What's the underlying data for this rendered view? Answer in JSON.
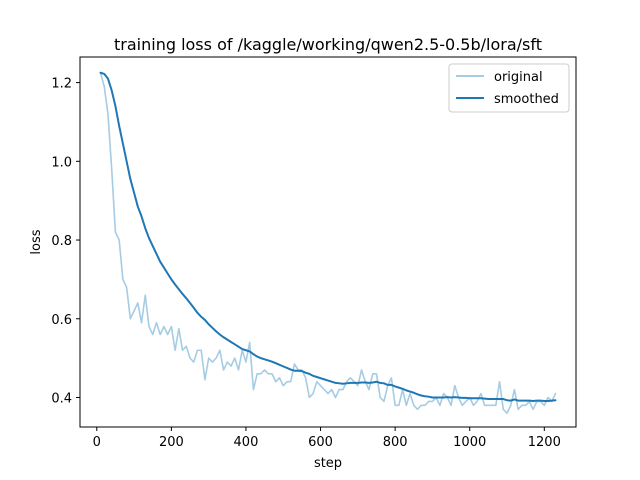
{
  "chart_data": {
    "type": "line",
    "title": "training loss of /kaggle/working/qwen2.5-0.5b/lora/sft",
    "xlabel": "step",
    "ylabel": "loss",
    "xlim": [
      -45,
      1285
    ],
    "ylim": [
      0.325,
      1.265
    ],
    "xticks": [
      0,
      200,
      400,
      600,
      800,
      1000,
      1200
    ],
    "yticks": [
      0.4,
      0.6,
      0.8,
      1.0,
      1.2
    ],
    "ytick_labels": [
      "0.4",
      "0.6",
      "0.8",
      "1.0",
      "1.2"
    ],
    "grid": false,
    "legend_position": "top-right",
    "series": [
      {
        "name": "original",
        "color": "#a6cce3",
        "x": [
          10,
          20,
          30,
          40,
          50,
          60,
          70,
          80,
          90,
          100,
          110,
          120,
          130,
          140,
          150,
          160,
          170,
          180,
          190,
          200,
          210,
          220,
          230,
          240,
          250,
          260,
          270,
          280,
          290,
          300,
          310,
          320,
          330,
          340,
          350,
          360,
          370,
          380,
          390,
          400,
          410,
          420,
          430,
          440,
          450,
          460,
          470,
          480,
          490,
          500,
          510,
          520,
          530,
          540,
          550,
          560,
          570,
          580,
          590,
          600,
          610,
          620,
          630,
          640,
          650,
          660,
          670,
          680,
          690,
          700,
          710,
          720,
          730,
          740,
          750,
          760,
          770,
          780,
          790,
          800,
          810,
          820,
          830,
          840,
          850,
          860,
          870,
          880,
          890,
          900,
          910,
          920,
          930,
          940,
          950,
          960,
          970,
          980,
          990,
          1000,
          1010,
          1020,
          1030,
          1040,
          1050,
          1060,
          1070,
          1080,
          1090,
          1100,
          1110,
          1120,
          1130,
          1140,
          1150,
          1160,
          1170,
          1180,
          1190,
          1200,
          1210,
          1220,
          1230
        ],
        "y": [
          1.225,
          1.19,
          1.12,
          0.98,
          0.82,
          0.8,
          0.7,
          0.68,
          0.6,
          0.62,
          0.64,
          0.59,
          0.66,
          0.58,
          0.56,
          0.59,
          0.56,
          0.58,
          0.56,
          0.58,
          0.52,
          0.575,
          0.52,
          0.53,
          0.5,
          0.49,
          0.52,
          0.52,
          0.445,
          0.5,
          0.49,
          0.5,
          0.52,
          0.47,
          0.49,
          0.48,
          0.5,
          0.47,
          0.52,
          0.49,
          0.54,
          0.42,
          0.46,
          0.46,
          0.47,
          0.46,
          0.46,
          0.44,
          0.45,
          0.43,
          0.44,
          0.44,
          0.485,
          0.47,
          0.47,
          0.45,
          0.4,
          0.41,
          0.44,
          0.43,
          0.42,
          0.41,
          0.42,
          0.4,
          0.42,
          0.42,
          0.44,
          0.45,
          0.44,
          0.43,
          0.47,
          0.44,
          0.42,
          0.46,
          0.46,
          0.4,
          0.39,
          0.43,
          0.45,
          0.38,
          0.38,
          0.42,
          0.38,
          0.41,
          0.38,
          0.37,
          0.38,
          0.38,
          0.39,
          0.39,
          0.4,
          0.38,
          0.41,
          0.4,
          0.38,
          0.43,
          0.4,
          0.38,
          0.39,
          0.4,
          0.38,
          0.39,
          0.41,
          0.38,
          0.38,
          0.38,
          0.38,
          0.44,
          0.37,
          0.36,
          0.38,
          0.42,
          0.37,
          0.38,
          0.38,
          0.39,
          0.37,
          0.39,
          0.39,
          0.38,
          0.4,
          0.39,
          0.41
        ]
      },
      {
        "name": "smoothed",
        "color": "#1f77b4",
        "x": [
          10,
          20,
          30,
          40,
          50,
          60,
          70,
          80,
          90,
          100,
          110,
          120,
          130,
          140,
          150,
          160,
          170,
          180,
          190,
          200,
          210,
          220,
          230,
          240,
          250,
          260,
          270,
          280,
          290,
          300,
          310,
          320,
          330,
          340,
          350,
          360,
          370,
          380,
          390,
          400,
          410,
          420,
          430,
          440,
          450,
          460,
          470,
          480,
          490,
          500,
          510,
          520,
          530,
          540,
          550,
          560,
          570,
          580,
          590,
          600,
          610,
          620,
          630,
          640,
          650,
          660,
          670,
          680,
          690,
          700,
          710,
          720,
          730,
          740,
          750,
          760,
          770,
          780,
          790,
          800,
          810,
          820,
          830,
          840,
          850,
          860,
          870,
          880,
          890,
          900,
          910,
          920,
          930,
          940,
          950,
          960,
          970,
          980,
          990,
          1000,
          1010,
          1020,
          1030,
          1040,
          1050,
          1060,
          1070,
          1080,
          1090,
          1100,
          1110,
          1120,
          1130,
          1140,
          1150,
          1160,
          1170,
          1180,
          1190,
          1200,
          1210,
          1220,
          1230
        ],
        "y": [
          1.225,
          1.222,
          1.21,
          1.18,
          1.14,
          1.09,
          1.045,
          1.0,
          0.955,
          0.92,
          0.885,
          0.86,
          0.83,
          0.805,
          0.785,
          0.765,
          0.745,
          0.73,
          0.715,
          0.7,
          0.687,
          0.675,
          0.663,
          0.652,
          0.64,
          0.628,
          0.615,
          0.605,
          0.597,
          0.586,
          0.577,
          0.568,
          0.56,
          0.553,
          0.547,
          0.541,
          0.535,
          0.529,
          0.523,
          0.52,
          0.517,
          0.51,
          0.504,
          0.5,
          0.497,
          0.494,
          0.491,
          0.487,
          0.483,
          0.479,
          0.475,
          0.471,
          0.468,
          0.468,
          0.467,
          0.463,
          0.46,
          0.455,
          0.452,
          0.449,
          0.446,
          0.443,
          0.44,
          0.437,
          0.436,
          0.435,
          0.436,
          0.437,
          0.437,
          0.437,
          0.438,
          0.438,
          0.437,
          0.438,
          0.44,
          0.437,
          0.436,
          0.432,
          0.432,
          0.428,
          0.425,
          0.422,
          0.418,
          0.415,
          0.412,
          0.408,
          0.405,
          0.403,
          0.402,
          0.4,
          0.4,
          0.4,
          0.4,
          0.401,
          0.4,
          0.401,
          0.4,
          0.399,
          0.399,
          0.398,
          0.398,
          0.398,
          0.398,
          0.397,
          0.396,
          0.396,
          0.396,
          0.396,
          0.396,
          0.393,
          0.392,
          0.395,
          0.392,
          0.392,
          0.392,
          0.392,
          0.391,
          0.392,
          0.392,
          0.391,
          0.391,
          0.392,
          0.393
        ]
      }
    ]
  }
}
